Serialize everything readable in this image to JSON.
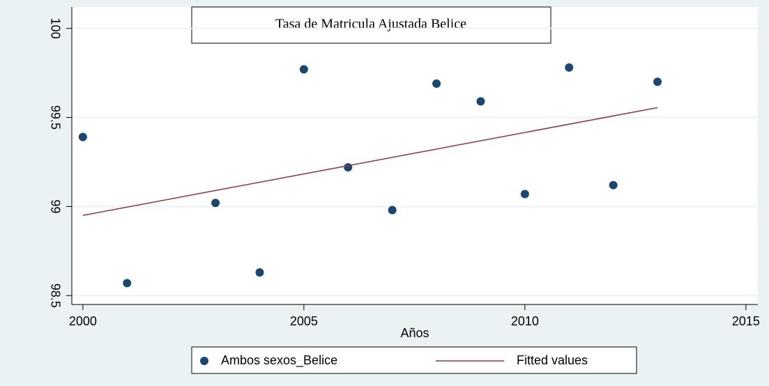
{
  "chart_data": {
    "type": "scatter",
    "title": "Tasa de Matricula Ajustada Belice",
    "x_label": "Años",
    "xlim": [
      1999.75,
      2015.27
    ],
    "xticks": [
      2000,
      2005,
      2010,
      2015
    ],
    "ylim": [
      98.45,
      100.12
    ],
    "yticks": [
      98.5,
      99,
      99.5,
      100
    ],
    "grid": true,
    "series": [
      {
        "name": "Ambos sexos_Belice",
        "color": "#1a476f",
        "kind": "scatter",
        "x": [
          2000,
          2001,
          2003,
          2004,
          2005,
          2006,
          2007,
          2008,
          2009,
          2010,
          2011,
          2012,
          2013
        ],
        "values": [
          99.39,
          98.57,
          99.02,
          98.63,
          99.77,
          99.22,
          98.98,
          99.69,
          99.59,
          99.07,
          99.78,
          99.12,
          99.7
        ]
      },
      {
        "name": "Fitted values",
        "color": "#90353b",
        "kind": "line",
        "x": [
          2000,
          2013
        ],
        "values": [
          98.95,
          99.555
        ]
      }
    ]
  }
}
